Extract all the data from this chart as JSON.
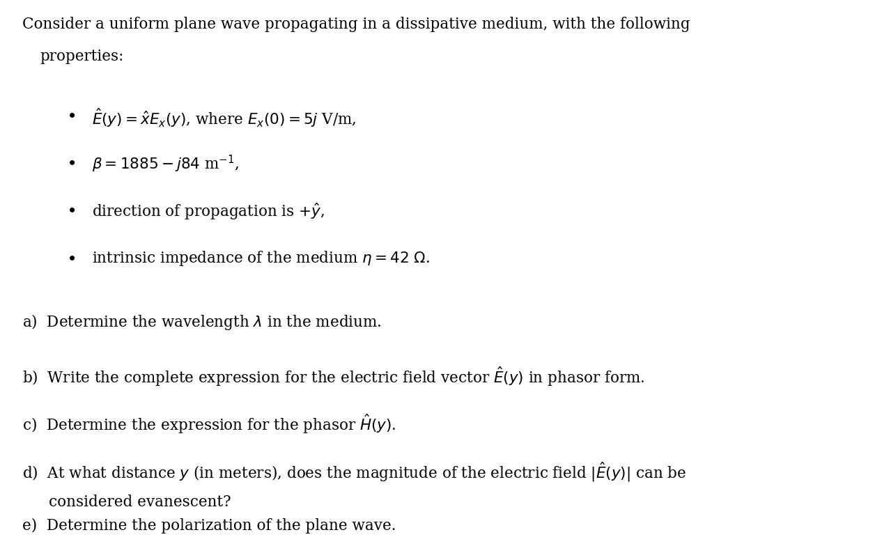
{
  "background_color": "#ffffff",
  "figsize": [
    12.56,
    7.71
  ],
  "dpi": 100,
  "title_text": "Consider a uniform plane wave propagating in a dissipative medium, with the following\n properties:",
  "bullet_items": [
    "$\\hat{E}(y) = \\hat{x}E_x(y)$, where $E_x(0) = 5j$ V/m,",
    "$\\beta = 1885 - j84$ m$^{-1}$,",
    "direction of propagation is $+\\hat{y}$,",
    "intrinsic impedance of the medium $\\eta = 42$ $\\Omega$."
  ],
  "question_items": [
    "a)  Determine the wavelength $\\lambda$ in the medium.",
    "b)  Write the complete expression for the electric field vector $\\hat{E}(y)$ in phasor form.",
    "c)  Determine the expression for the phasor $\\hat{H}(y)$.",
    "d)  At what distance $y$ (in meters), does the magnitude of the electric field $|\\hat{E}(y)|$ can be\n      considered evanescent?",
    "e)  Determine the polarization of the plane wave."
  ],
  "text_color": "#000000",
  "font_size_main": 15.5,
  "font_size_bullets": 15.5,
  "font_size_questions": 15.5
}
